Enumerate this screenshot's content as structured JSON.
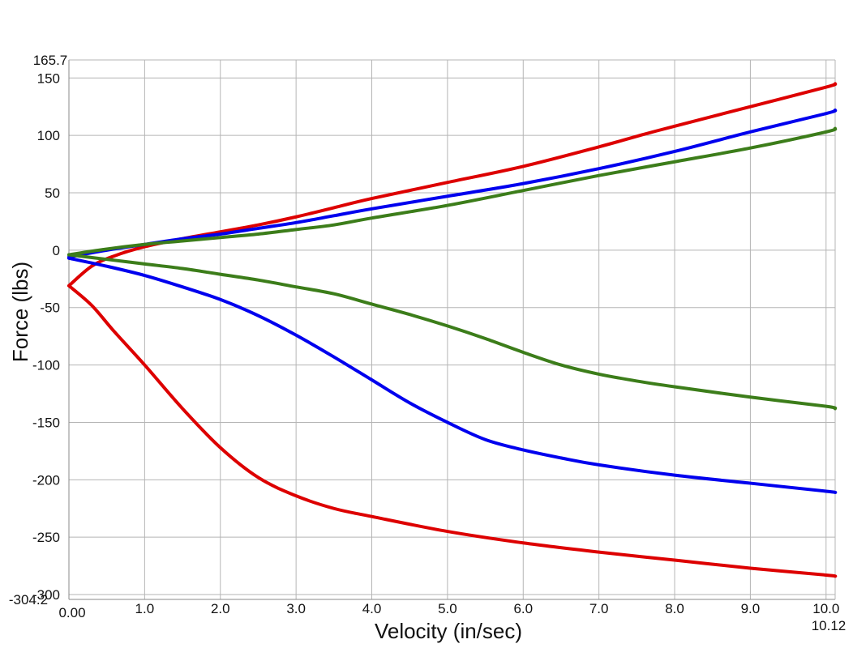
{
  "chart_data": {
    "type": "line",
    "xlabel": "Velocity (in/sec)",
    "ylabel": "Force (lbs)",
    "xlim": [
      0,
      10.12
    ],
    "ylim": [
      -304.2,
      165.7
    ],
    "x_min_label": "0.00",
    "x_max_label": "10.12",
    "y_min_label": "-304.2",
    "y_max_label": "165.7",
    "x_ticks": [
      "1.0",
      "2.0",
      "3.0",
      "4.0",
      "5.0",
      "6.0",
      "7.0",
      "8.0",
      "9.0",
      "10.0"
    ],
    "y_ticks": [
      "150",
      "100",
      "50",
      "0",
      "-50",
      "-100",
      "-150",
      "-200",
      "-250",
      "-300"
    ],
    "grid": true,
    "series": [
      {
        "color": "#dd0000",
        "x": [
          0,
          0.3,
          0.6,
          1.0,
          1.5,
          2.0,
          2.5,
          3.0,
          3.5,
          4.0,
          5.0,
          6.0,
          7.0,
          7.6,
          8.0,
          9.0,
          10.0,
          10.12
        ],
        "values": [
          -31,
          -14,
          -5,
          3,
          10,
          16,
          22,
          29,
          37,
          45,
          59,
          73,
          90,
          101,
          108,
          125,
          142,
          145
        ]
      },
      {
        "color": "#0000ee",
        "x": [
          0,
          0.5,
          1.0,
          1.5,
          2.0,
          2.5,
          3.0,
          3.5,
          4.0,
          5.0,
          6.0,
          7.0,
          8.0,
          9.0,
          10.0,
          10.12
        ],
        "values": [
          -6,
          0,
          5,
          10,
          14,
          19,
          24,
          30,
          36,
          47,
          58,
          71,
          86,
          103,
          119,
          122
        ]
      },
      {
        "color": "#3c7d1a",
        "x": [
          0,
          0.5,
          1.0,
          1.5,
          2.0,
          2.5,
          3.0,
          3.5,
          4.0,
          5.0,
          6.0,
          7.0,
          8.0,
          9.0,
          10.0,
          10.12
        ],
        "values": [
          -4,
          1,
          5,
          8,
          11,
          14,
          18,
          22,
          28,
          39,
          52,
          65,
          77,
          89,
          103,
          106
        ]
      },
      {
        "color": "#3c7d1a",
        "x": [
          0,
          0.5,
          1.0,
          1.5,
          2.0,
          2.5,
          3.0,
          3.5,
          4.0,
          4.5,
          5.0,
          5.5,
          6.0,
          6.5,
          7.0,
          7.5,
          8.0,
          9.0,
          10.0,
          10.12
        ],
        "values": [
          -4,
          -8,
          -12,
          -16,
          -21,
          -26,
          -32,
          -38,
          -47,
          -56,
          -66,
          -77,
          -89,
          -100,
          -108,
          -114,
          -119,
          -128,
          -136,
          -138
        ]
      },
      {
        "color": "#0000ee",
        "x": [
          0,
          0.5,
          1.0,
          1.5,
          2.0,
          2.5,
          3.0,
          3.5,
          4.0,
          4.5,
          5.0,
          5.5,
          6.0,
          6.5,
          7.0,
          8.0,
          9.0,
          10.0,
          10.12
        ],
        "values": [
          -7,
          -14,
          -22,
          -32,
          -43,
          -57,
          -74,
          -93,
          -113,
          -133,
          -150,
          -165,
          -174,
          -181,
          -187,
          -196,
          -203,
          -210,
          -211
        ]
      },
      {
        "color": "#dd0000",
        "x": [
          0,
          0.3,
          0.6,
          1.0,
          1.5,
          2.0,
          2.5,
          3.0,
          3.5,
          4.0,
          5.0,
          6.0,
          7.0,
          8.0,
          9.0,
          10.0,
          10.12
        ],
        "values": [
          -31,
          -48,
          -71,
          -100,
          -138,
          -172,
          -198,
          -214,
          -225,
          -232,
          -245,
          -255,
          -263,
          -270,
          -277,
          -283,
          -284
        ]
      }
    ]
  }
}
